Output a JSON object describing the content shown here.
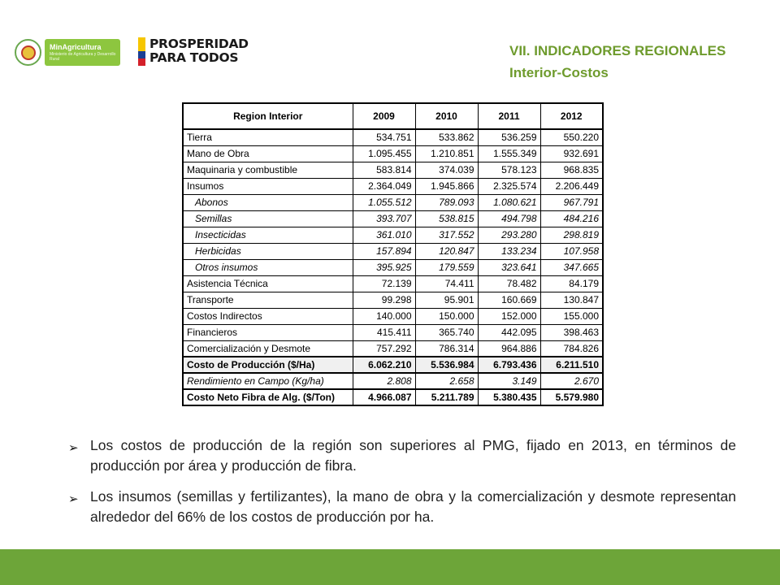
{
  "header": {
    "ministry_name": "MinAgricultura",
    "ministry_sub": "Ministerio de Agricultura y Desarrollo Rural",
    "brand_line1": "PROSPERIDAD",
    "brand_line2": "PARA TODOS",
    "title": "VII. INDICADORES REGIONALES",
    "subtitle": "Interior-Costos"
  },
  "colors": {
    "accent_green": "#6e9b2d",
    "footer_green": "#6da539",
    "flag_yellow": "#f6c600",
    "flag_blue": "#1b3f94",
    "flag_red": "#d4202a"
  },
  "table": {
    "headers": [
      "Region Interior",
      "2009",
      "2010",
      "2011",
      "2012"
    ],
    "rows": [
      {
        "label": "Tierra",
        "values": [
          "534.751",
          "533.862",
          "536.259",
          "550.220"
        ],
        "style": "normal"
      },
      {
        "label": "Mano de Obra",
        "values": [
          "1.095.455",
          "1.210.851",
          "1.555.349",
          "932.691"
        ],
        "style": "normal"
      },
      {
        "label": "Maquinaria y combustible",
        "values": [
          "583.814",
          "374.039",
          "578.123",
          "968.835"
        ],
        "style": "normal"
      },
      {
        "label": "Insumos",
        "values": [
          "2.364.049",
          "1.945.866",
          "2.325.574",
          "2.206.449"
        ],
        "style": "normal"
      },
      {
        "label": "Abonos",
        "values": [
          "1.055.512",
          "789.093",
          "1.080.621",
          "967.791"
        ],
        "style": "sub"
      },
      {
        "label": "Semillas",
        "values": [
          "393.707",
          "538.815",
          "494.798",
          "484.216"
        ],
        "style": "sub"
      },
      {
        "label": "Insecticidas",
        "values": [
          "361.010",
          "317.552",
          "293.280",
          "298.819"
        ],
        "style": "sub"
      },
      {
        "label": "Herbicidas",
        "values": [
          "157.894",
          "120.847",
          "133.234",
          "107.958"
        ],
        "style": "sub"
      },
      {
        "label": "Otros insumos",
        "values": [
          "395.925",
          "179.559",
          "323.641",
          "347.665"
        ],
        "style": "sub"
      },
      {
        "label": "Asistencia Técnica",
        "values": [
          "72.139",
          "74.411",
          "78.482",
          "84.179"
        ],
        "style": "normal"
      },
      {
        "label": "Transporte",
        "values": [
          "99.298",
          "95.901",
          "160.669",
          "130.847"
        ],
        "style": "normal"
      },
      {
        "label": "Costos Indirectos",
        "values": [
          "140.000",
          "150.000",
          "152.000",
          "155.000"
        ],
        "style": "normal"
      },
      {
        "label": "Financieros",
        "values": [
          "415.411",
          "365.740",
          "442.095",
          "398.463"
        ],
        "style": "normal"
      },
      {
        "label": "Comercialización y Desmote",
        "values": [
          "757.292",
          "786.314",
          "964.886",
          "784.826"
        ],
        "style": "normal"
      },
      {
        "label": "Costo de Producción ($/Ha)",
        "values": [
          "6.062.210",
          "5.536.984",
          "6.793.436",
          "6.211.510"
        ],
        "style": "bold"
      },
      {
        "label": "Rendimiento en Campo (Kg/ha)",
        "values": [
          "2.808",
          "2.658",
          "3.149",
          "2.670"
        ],
        "style": "ital"
      },
      {
        "label": "Costo Neto Fibra de Alg. ($/Ton)",
        "values": [
          "4.966.087",
          "5.211.789",
          "5.380.435",
          "5.579.980"
        ],
        "style": "bold2"
      }
    ]
  },
  "bullets": [
    "Los costos de producción de la región son superiores al PMG, fijado en 2013, en términos de producción por área y producción de fibra.",
    "Los insumos (semillas y fertilizantes), la mano de obra y la comercialización y desmote representan alrededor del 66% de los costos de producción por ha."
  ]
}
